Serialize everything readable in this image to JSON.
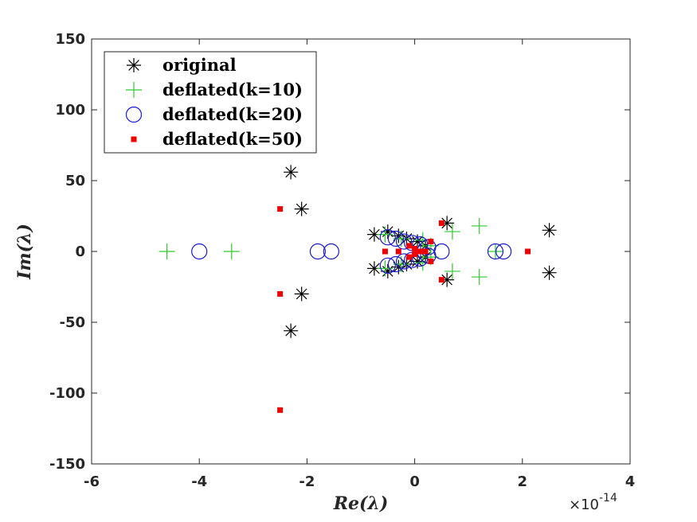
{
  "chart_data": {
    "type": "scatter",
    "title": "",
    "xlabel": "Re(λ)",
    "ylabel": "Im(λ)",
    "xlim": [
      -6,
      4
    ],
    "ylim": [
      -150,
      150
    ],
    "x_exponent_multiplier": "×10",
    "x_exponent_power": "-14",
    "xticks": [
      -6,
      -4,
      -2,
      0,
      2,
      4
    ],
    "yticks": [
      -150,
      -100,
      -50,
      0,
      50,
      100,
      150
    ],
    "xtick_labels": [
      "-6",
      "-4",
      "-2",
      "0",
      "2",
      "4"
    ],
    "ytick_labels": [
      "-150",
      "-100",
      "-50",
      "0",
      "50",
      "100",
      "150"
    ],
    "grid": false,
    "legend_position": "top-left",
    "series": [
      {
        "name": "original",
        "marker": "asterisk",
        "color": "#000000",
        "points": [
          [
            -2.3,
            56
          ],
          [
            -2.3,
            -56
          ],
          [
            -2.1,
            30
          ],
          [
            -2.1,
            -30
          ],
          [
            -0.75,
            12
          ],
          [
            -0.75,
            -12
          ],
          [
            -0.5,
            14
          ],
          [
            -0.5,
            -14
          ],
          [
            -0.3,
            11
          ],
          [
            -0.3,
            -11
          ],
          [
            -0.15,
            9
          ],
          [
            -0.15,
            -9
          ],
          [
            0.05,
            7
          ],
          [
            0.05,
            -7
          ],
          [
            0.2,
            4
          ],
          [
            0.2,
            -4
          ],
          [
            0.6,
            20
          ],
          [
            0.6,
            -20
          ],
          [
            2.5,
            15
          ],
          [
            2.5,
            -15
          ]
        ]
      },
      {
        "name": "deflated(k=10)",
        "marker": "plus",
        "color": "#2ecc2e",
        "points": [
          [
            -4.6,
            0
          ],
          [
            -3.4,
            0
          ],
          [
            -0.55,
            12
          ],
          [
            -0.55,
            -12
          ],
          [
            -0.25,
            9
          ],
          [
            -0.25,
            -9
          ],
          [
            0.15,
            8
          ],
          [
            0.15,
            -8
          ],
          [
            0.3,
            4
          ],
          [
            0.3,
            -4
          ],
          [
            0.7,
            14
          ],
          [
            0.7,
            -14
          ],
          [
            1.2,
            18
          ],
          [
            1.2,
            -18
          ],
          [
            1.5,
            0
          ]
        ]
      },
      {
        "name": "deflated(k=20)",
        "marker": "circle",
        "color": "#1a1acc",
        "points": [
          [
            -4.0,
            0
          ],
          [
            -1.8,
            0
          ],
          [
            -1.55,
            0
          ],
          [
            -0.5,
            10
          ],
          [
            -0.5,
            -10
          ],
          [
            -0.35,
            9
          ],
          [
            -0.35,
            -9
          ],
          [
            -0.2,
            7
          ],
          [
            -0.2,
            -7
          ],
          [
            -0.05,
            6
          ],
          [
            -0.05,
            -6
          ],
          [
            0.1,
            5
          ],
          [
            0.1,
            -5
          ],
          [
            0.25,
            3
          ],
          [
            0.25,
            -3
          ],
          [
            0.5,
            0
          ],
          [
            1.5,
            0
          ],
          [
            1.65,
            0
          ]
        ]
      },
      {
        "name": "deflated(k=50)",
        "marker": "square",
        "color": "#ee0000",
        "points": [
          [
            -2.5,
            30
          ],
          [
            -2.5,
            -30
          ],
          [
            -2.5,
            -112
          ],
          [
            -0.55,
            0
          ],
          [
            -0.3,
            0
          ],
          [
            -0.1,
            4
          ],
          [
            -0.1,
            -4
          ],
          [
            0.0,
            2
          ],
          [
            0.0,
            -2
          ],
          [
            0.1,
            0
          ],
          [
            0.2,
            0
          ],
          [
            0.3,
            7
          ],
          [
            0.3,
            -7
          ],
          [
            0.5,
            20
          ],
          [
            0.5,
            -20
          ],
          [
            2.1,
            0
          ]
        ]
      }
    ]
  }
}
